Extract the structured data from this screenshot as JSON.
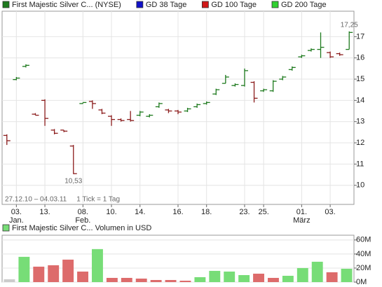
{
  "chart_data": [
    {
      "type": "ohlc",
      "series": [
        {
          "name": "First Majestic Silver C... (NYSE)",
          "color": "#1e7a1e"
        },
        {
          "name": "GD 38 Tage",
          "color": "#1010c8"
        },
        {
          "name": "GD 100 Tage",
          "color": "#d01818"
        },
        {
          "name": "GD 200 Tage",
          "color": "#30d030"
        }
      ],
      "categories": [
        null,
        "03.",
        null,
        null,
        "13.",
        null,
        null,
        null,
        "08.",
        null,
        null,
        "10.",
        null,
        null,
        "14.",
        null,
        null,
        null,
        "16.",
        null,
        null,
        "18.",
        null,
        null,
        null,
        "23.",
        null,
        "25.",
        null,
        null,
        null,
        "01.",
        null,
        null,
        "03.",
        null,
        null
      ],
      "months": [
        null,
        "Jan.",
        null,
        null,
        null,
        null,
        null,
        null,
        "Feb.",
        null,
        null,
        null,
        null,
        null,
        null,
        null,
        null,
        null,
        null,
        null,
        null,
        null,
        null,
        null,
        null,
        null,
        null,
        null,
        null,
        null,
        null,
        "März",
        null,
        null,
        null,
        null,
        null
      ],
      "open": [
        12.35,
        14.98,
        15.6,
        13.35,
        14.0,
        12.6,
        12.6,
        11.85,
        13.85,
        13.95,
        13.55,
        13.25,
        13.1,
        13.1,
        13.3,
        13.25,
        13.7,
        13.55,
        13.5,
        13.5,
        13.7,
        13.85,
        14.3,
        14.8,
        14.7,
        14.7,
        14.85,
        14.45,
        14.45,
        15.0,
        15.45,
        16.05,
        16.35,
        16.4,
        16.25,
        16.2,
        16.4
      ],
      "high": [
        12.4,
        15.1,
        15.7,
        13.4,
        14.05,
        12.65,
        12.6,
        11.9,
        13.9,
        14.0,
        13.6,
        13.3,
        13.15,
        13.5,
        13.5,
        13.35,
        13.9,
        13.6,
        13.55,
        13.65,
        13.85,
        13.95,
        14.55,
        15.2,
        14.8,
        15.5,
        14.9,
        14.55,
        14.95,
        15.15,
        15.6,
        16.15,
        16.45,
        17.2,
        16.3,
        16.25,
        17.25
      ],
      "low": [
        11.9,
        14.95,
        15.55,
        13.3,
        12.8,
        12.4,
        12.5,
        10.53,
        13.85,
        13.6,
        13.35,
        12.8,
        13.0,
        13.0,
        13.25,
        13.2,
        13.65,
        13.4,
        13.35,
        13.45,
        13.65,
        13.8,
        14.25,
        14.8,
        14.65,
        14.65,
        13.9,
        14.4,
        14.4,
        14.95,
        15.4,
        16.0,
        16.3,
        16.0,
        16.0,
        16.1,
        16.4
      ],
      "close": [
        12.1,
        15.05,
        15.65,
        13.3,
        13.15,
        12.45,
        12.55,
        10.55,
        13.9,
        13.85,
        13.4,
        13.1,
        13.05,
        13.05,
        13.45,
        13.3,
        13.85,
        13.5,
        13.45,
        13.6,
        13.8,
        13.9,
        14.5,
        15.1,
        14.75,
        15.4,
        14.1,
        14.5,
        14.9,
        15.1,
        15.55,
        16.1,
        16.4,
        16.5,
        16.05,
        16.15,
        17.2
      ],
      "high_labels": [
        null,
        null,
        null,
        null,
        null,
        null,
        null,
        null,
        null,
        null,
        null,
        null,
        null,
        null,
        null,
        null,
        null,
        null,
        null,
        null,
        null,
        null,
        null,
        null,
        null,
        null,
        null,
        null,
        null,
        null,
        null,
        null,
        null,
        null,
        null,
        null,
        "17,25"
      ],
      "low_labels": [
        null,
        null,
        null,
        null,
        null,
        null,
        null,
        "10,53",
        null,
        null,
        null,
        null,
        null,
        null,
        null,
        null,
        null,
        null,
        null,
        null,
        null,
        null,
        null,
        null,
        null,
        null,
        null,
        null,
        null,
        null,
        null,
        null,
        null,
        null,
        null,
        null,
        null
      ],
      "up_color": "#1e7a1e",
      "down_color": "#8b1c1c",
      "ylim": [
        9.1,
        18.2
      ],
      "yticks": [
        10,
        11,
        12,
        13,
        14,
        15,
        16,
        17
      ],
      "grid": true,
      "annotations": [
        "27.12.10 – 04.03.11",
        "1 Tick = 1 Tag"
      ]
    },
    {
      "type": "bar",
      "series": [
        {
          "name": "First Majestic Silver C... Volumen in USD",
          "color": "#77dd77"
        }
      ],
      "values": [
        4,
        36,
        22,
        24,
        32,
        15,
        47,
        6,
        6,
        5,
        3,
        3,
        2,
        7,
        16,
        15,
        10,
        12,
        6,
        9,
        20,
        29,
        14,
        19
      ],
      "colors": [
        "#cccccc",
        "#77dd77",
        "#dd6b6b",
        "#dd6b6b",
        "#dd6b6b",
        "#dd6b6b",
        "#77dd77",
        "#dd6b6b",
        "#dd6b6b",
        "#dd6b6b",
        "#dd6b6b",
        "#dd6b6b",
        "#dd6b6b",
        "#77dd77",
        "#77dd77",
        "#77dd77",
        "#77dd77",
        "#dd6b6b",
        "#dd6b6b",
        "#77dd77",
        "#77dd77",
        "#77dd77",
        "#dd6b6b",
        "#77dd77"
      ],
      "ylim": [
        0,
        66.8
      ],
      "yticks": [
        {
          "value": 0,
          "label": "0M"
        },
        {
          "value": 20,
          "label": "20M"
        },
        {
          "value": 40,
          "label": "40M"
        },
        {
          "value": 60,
          "label": "60M"
        }
      ],
      "grid": true
    }
  ]
}
